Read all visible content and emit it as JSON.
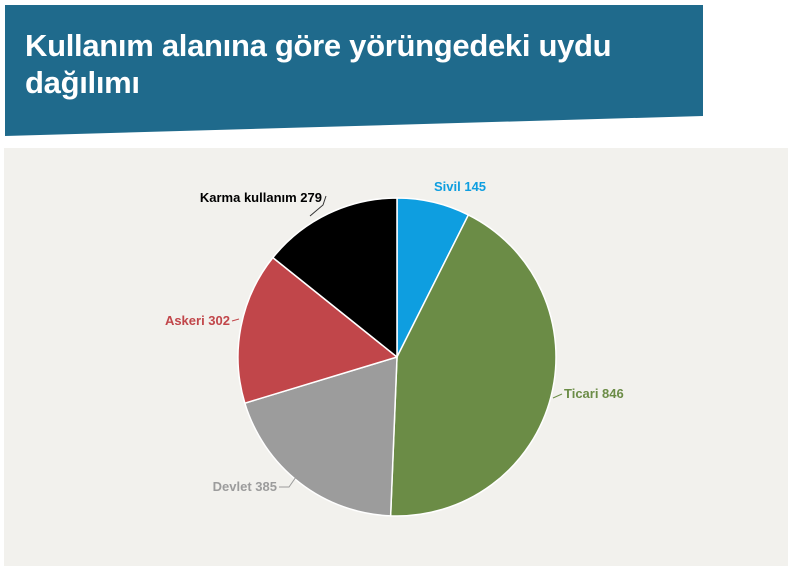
{
  "header": {
    "title": "Kullanım alanına göre yörüngedeki uydu dağılımı",
    "background_color": "#1f6a8c",
    "text_color": "#ffffff"
  },
  "chart_panel": {
    "background_color": "#f2f1ed"
  },
  "chart_data": {
    "type": "pie",
    "title": "Kullanım alanına göre yörüngedeki uydu dağılımı",
    "start": "12 o'clock",
    "direction": "clockwise",
    "legend": "none",
    "slices": [
      {
        "label": "Sivil",
        "value": 145,
        "color": "#0e9ee0",
        "label_text": "Sivil 145",
        "label_color": "#0e9ee0"
      },
      {
        "label": "Ticari",
        "value": 846,
        "color": "#6b8c46",
        "label_text": "Ticari 846",
        "label_color": "#6b8c46"
      },
      {
        "label": "Devlet",
        "value": 385,
        "color": "#9c9c9c",
        "label_text": "Devlet 385",
        "label_color": "#9c9c9c"
      },
      {
        "label": "Askeri",
        "value": 302,
        "color": "#c1464a",
        "label_text": "Askeri 302",
        "label_color": "#c1464a"
      },
      {
        "label": "Karma kullanım",
        "value": 279,
        "color": "#000000",
        "label_text": "Karma kullanım 279",
        "label_color": "#000000"
      }
    ]
  }
}
